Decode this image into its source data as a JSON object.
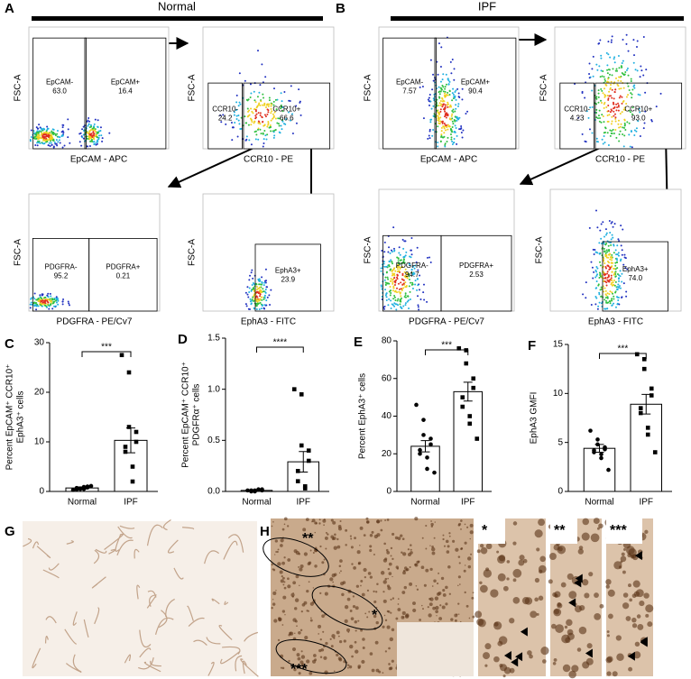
{
  "panels": {
    "A": {
      "letter": "A",
      "group": "Normal",
      "plots": [
        {
          "x_label": "EpCAM - APC",
          "y_label": "FSC-A",
          "gates": [
            {
              "name": "EpCAM-",
              "value": "63.0"
            },
            {
              "name": "EpCAM+",
              "value": "16.4"
            }
          ]
        },
        {
          "x_label": "CCR10 - PE",
          "y_label": "FSC-A",
          "gates": [
            {
              "name": "CCR10-",
              "value": "24.2"
            },
            {
              "name": "CCR10+",
              "value": "66.6"
            }
          ]
        },
        {
          "x_label": "PDGFRA - PE/Cv7",
          "y_label": "FSC-A",
          "gates": [
            {
              "name": "PDGFRA-",
              "value": "95.2"
            },
            {
              "name": "PDGFRA+",
              "value": "0.21"
            }
          ]
        },
        {
          "x_label": "EphA3 - FITC",
          "y_label": "FSC-A",
          "gates": [
            {
              "name": "EphA3+",
              "value": "23.9"
            }
          ]
        }
      ]
    },
    "B": {
      "letter": "B",
      "group": "IPF",
      "plots": [
        {
          "x_label": "EpCAM - APC",
          "y_label": "FSC-A",
          "gates": [
            {
              "name": "EpCAM-",
              "value": "7.57"
            },
            {
              "name": "EpCAM+",
              "value": "90.4"
            }
          ]
        },
        {
          "x_label": "CCR10 - PE",
          "y_label": "FSC-A",
          "gates": [
            {
              "name": "CCR10-",
              "value": "4.23"
            },
            {
              "name": "CCR10+",
              "value": "93.0"
            }
          ]
        },
        {
          "x_label": "PDGFRA - PE/Cv7",
          "y_label": "FSC-A",
          "gates": [
            {
              "name": "PDGFRA-",
              "value": "94.7"
            },
            {
              "name": "PDGFRA+",
              "value": "2.53"
            }
          ]
        },
        {
          "x_label": "EphA3 - FITC",
          "y_label": "FSC-A",
          "gates": [
            {
              "name": "EphA3+",
              "value": "74.0"
            }
          ]
        }
      ]
    },
    "G": {
      "letter": "G"
    },
    "H": {
      "letter": "H",
      "image_labels": [
        "**",
        "*",
        "***"
      ],
      "inset_labels": [
        "*",
        "**",
        "***"
      ]
    }
  },
  "chart_data": [
    {
      "type": "bar",
      "panel": "C",
      "ylabel": [
        "Percent EpCAM⁺ CCR10⁺",
        "EphA3⁺ cells"
      ],
      "categories": [
        "Normal",
        "IPF"
      ],
      "values": [
        0.7,
        10.3
      ],
      "errors": [
        0.2,
        2.5
      ],
      "points": [
        [
          0.3,
          0.5,
          0.6,
          0.8,
          1.0,
          0.4,
          0.7,
          0.9,
          0.5,
          1.1
        ],
        [
          27.5,
          24,
          13,
          12,
          10,
          9,
          8,
          5,
          2
        ]
      ],
      "significance": "***",
      "ylim": [
        0,
        30
      ],
      "yticks": [
        0,
        10,
        20,
        30
      ],
      "color": "#ffffff"
    },
    {
      "type": "bar",
      "panel": "D",
      "ylabel": [
        "Percent EpCAM⁺ CCR10⁺",
        "PDGFRα⁺ cells"
      ],
      "categories": [
        "Normal",
        "IPF"
      ],
      "values": [
        0.01,
        0.29
      ],
      "errors": [
        0.005,
        0.1
      ],
      "points": [
        [
          0.01,
          0.01,
          0.0,
          0.02,
          0.01,
          0.0,
          0.01,
          0.02
        ],
        [
          1.0,
          0.95,
          0.45,
          0.4,
          0.3,
          0.2,
          0.1,
          0.05,
          0.03
        ]
      ],
      "significance": "****",
      "ylim": [
        0,
        1.5
      ],
      "yticks": [
        {
          "value": 0,
          "label": "0.0"
        },
        {
          "value": 0.5,
          "label": "0.5"
        },
        {
          "value": 1,
          "label": "1.0"
        },
        {
          "value": 1.5,
          "label": "1.5"
        }
      ],
      "color": "#ffffff"
    },
    {
      "type": "bar",
      "panel": "E",
      "ylabel": [
        "Percent EphA3⁺ cells"
      ],
      "categories": [
        "Normal",
        "IPF"
      ],
      "values": [
        24,
        53
      ],
      "errors": [
        3,
        5
      ],
      "points": [
        [
          46,
          38,
          30,
          28,
          25,
          22,
          20,
          18,
          12,
          10
        ],
        [
          76,
          75,
          68,
          60,
          55,
          50,
          45,
          40,
          36,
          28
        ]
      ],
      "significance": "***",
      "ylim": [
        0,
        80
      ],
      "yticks": [
        0,
        20,
        40,
        60,
        80
      ],
      "color": "#ffffff"
    },
    {
      "type": "bar",
      "panel": "F",
      "ylabel": [
        "EphA3 GMFI"
      ],
      "categories": [
        "Normal",
        "IPF"
      ],
      "values": [
        4.4,
        8.9
      ],
      "errors": [
        0.4,
        1.0
      ],
      "points": [
        [
          6.2,
          5.3,
          4.8,
          4.5,
          4.3,
          4.2,
          4.0,
          3.8,
          3.4,
          2.2
        ],
        [
          14,
          13.5,
          12.5,
          10.5,
          9.8,
          8.5,
          8,
          6.5,
          5.8,
          4
        ]
      ],
      "significance": "***",
      "ylim": [
        0,
        15
      ],
      "yticks": [
        0,
        5,
        10,
        15
      ],
      "color": "#ffffff"
    }
  ]
}
